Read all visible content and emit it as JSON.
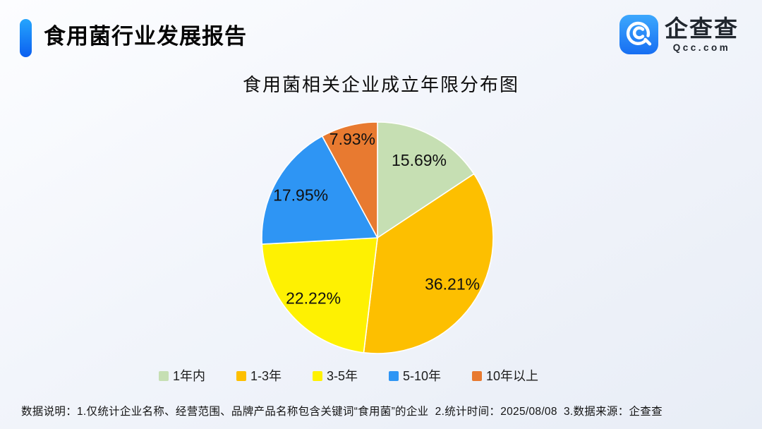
{
  "page": {
    "background_top": "#fcfdff",
    "background_bottom": "#e8edf6"
  },
  "header": {
    "title": "食用菌行业发展报告",
    "accent_color_top": "#25a5fd",
    "accent_color_bottom": "#0b5ff0"
  },
  "logo": {
    "name": "企查查",
    "domain": "Qcc.com",
    "icon_color_top": "#3da8fd",
    "icon_color_bottom": "#176ef2"
  },
  "chart_data": {
    "type": "pie",
    "title": "食用菌相关企业成立年限分布图",
    "start_angle_deg": 0,
    "direction": "clockwise",
    "legend_position": "bottom",
    "label_color": "#111111",
    "slice_border_color": "#ffffff",
    "slices": [
      {
        "label": "1年内",
        "value": 15.69,
        "display": "15.69%",
        "color": "#c6dfb3"
      },
      {
        "label": "1-3年",
        "value": 36.21,
        "display": "36.21%",
        "color": "#fdbf00"
      },
      {
        "label": "3-5年",
        "value": 22.22,
        "display": "22.22%",
        "color": "#fef102"
      },
      {
        "label": "5-10年",
        "value": 17.95,
        "display": "17.95%",
        "color": "#2e95f4"
      },
      {
        "label": "10年以上",
        "value": 7.93,
        "display": "7.93%",
        "color": "#e87a30"
      }
    ]
  },
  "footer": {
    "note": "数据说明：1.仅统计企业名称、经营范围、品牌产品名称包含关键词“食用菌”的企业  2.统计时间：2025/08/08  3.数据来源：企查查"
  }
}
